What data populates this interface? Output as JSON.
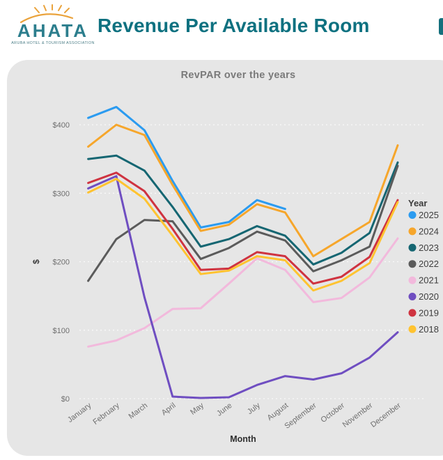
{
  "header": {
    "logo_text": "AHATA",
    "logo_subtitle": "ARUBA HOTEL & TOURISM ASSOCIATION",
    "logo_teal": "#2c7e8d",
    "logo_gold": "#eaa33c",
    "title": "Revenue Per Available Room",
    "title_color": "#0e7180"
  },
  "chart_data": {
    "type": "line",
    "title": "RevPAR over the years",
    "title_color": "#7a7a7a",
    "xlabel": "Month",
    "ylabel": "$",
    "ylim": [
      0,
      440
    ],
    "yticks": [
      0,
      100,
      200,
      300,
      400
    ],
    "ytick_labels": [
      "$0",
      "$100",
      "$200",
      "$300",
      "$400"
    ],
    "grid": "horizontal-dotted",
    "legend_title": "Year",
    "legend_position": "right",
    "categories": [
      "January",
      "February",
      "March",
      "April",
      "May",
      "June",
      "July",
      "August",
      "September",
      "October",
      "November",
      "December"
    ],
    "series": [
      {
        "name": "2025",
        "color": "#2b9bf0",
        "values": [
          410,
          426,
          392,
          318,
          250,
          258,
          290,
          277,
          null,
          null,
          null,
          null
        ]
      },
      {
        "name": "2024",
        "color": "#f6a62b",
        "values": [
          368,
          400,
          385,
          312,
          245,
          254,
          284,
          272,
          208,
          233,
          258,
          370
        ]
      },
      {
        "name": "2023",
        "color": "#156672",
        "values": [
          350,
          355,
          333,
          280,
          222,
          233,
          252,
          238,
          196,
          213,
          242,
          345
        ]
      },
      {
        "name": "2022",
        "color": "#5b5b5b",
        "values": [
          172,
          233,
          261,
          259,
          204,
          220,
          244,
          231,
          186,
          202,
          222,
          340
        ]
      },
      {
        "name": "2021",
        "color": "#f2b9dc",
        "values": [
          76,
          85,
          103,
          131,
          132,
          168,
          205,
          188,
          141,
          147,
          177,
          234
        ]
      },
      {
        "name": "2020",
        "color": "#6f4ec1",
        "values": [
          307,
          325,
          148,
          3,
          1,
          2,
          20,
          33,
          28,
          37,
          60,
          97
        ]
      },
      {
        "name": "2019",
        "color": "#cf3340",
        "values": [
          315,
          330,
          303,
          248,
          188,
          190,
          214,
          208,
          168,
          178,
          207,
          290
        ]
      },
      {
        "name": "2018",
        "color": "#ffc330",
        "values": [
          301,
          321,
          292,
          238,
          182,
          187,
          208,
          202,
          158,
          172,
          198,
          287
        ]
      }
    ],
    "axis_text_color": "#6f6f6f",
    "month_label_color": "#2f2f2f",
    "legend_text_color": "#3f3f3f"
  }
}
